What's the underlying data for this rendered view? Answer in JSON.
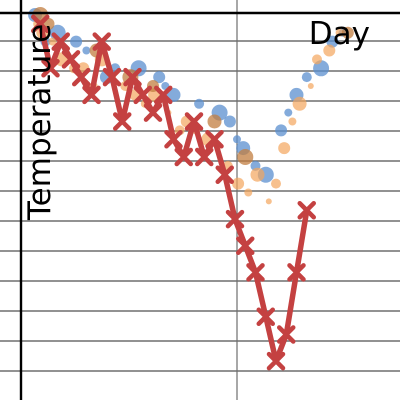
{
  "chart_data": {
    "type": "scatter",
    "xlabel": "Day",
    "ylabel": "Temperature",
    "grid": "on",
    "colors": {
      "line": "#c44141",
      "blue_points": "#5b8fcf",
      "orange_points": "#f4a55c",
      "brown_points": "#c27e40"
    },
    "series": [
      {
        "values": [
          [
            1,
            39
          ],
          [
            2,
            34
          ],
          [
            3,
            37
          ],
          [
            4,
            35
          ],
          [
            5,
            33
          ],
          [
            6,
            31
          ],
          [
            7,
            37
          ],
          [
            8,
            33
          ],
          [
            9,
            28
          ],
          [
            10,
            33
          ],
          [
            11,
            31
          ],
          [
            12,
            29
          ],
          [
            13,
            31
          ],
          [
            14,
            26
          ],
          [
            15,
            24
          ],
          [
            16,
            28
          ],
          [
            17,
            24
          ],
          [
            18,
            26
          ],
          [
            19,
            22
          ],
          [
            20,
            17
          ],
          [
            21,
            14
          ],
          [
            22,
            11
          ],
          [
            23,
            6
          ],
          [
            24,
            1
          ],
          [
            25,
            4
          ],
          [
            26,
            11
          ],
          [
            27,
            18
          ]
        ]
      },
      {
        "values": [
          [
            0.5,
            40
          ],
          [
            1.5,
            37
          ],
          [
            2.7,
            38
          ],
          [
            4.5,
            37
          ],
          [
            5.5,
            36
          ],
          [
            7.5,
            33
          ],
          [
            8.3,
            34
          ],
          [
            10.6,
            34
          ],
          [
            12.6,
            33
          ],
          [
            13.2,
            32
          ],
          [
            14.0,
            31
          ],
          [
            16.5,
            30
          ],
          [
            18.5,
            29
          ],
          [
            19.5,
            28
          ],
          [
            20.2,
            26
          ],
          [
            20.8,
            25
          ],
          [
            22.0,
            23
          ],
          [
            23.0,
            22
          ],
          [
            24.5,
            27
          ],
          [
            25.2,
            29
          ],
          [
            26.0,
            31
          ],
          [
            27.0,
            33
          ],
          [
            28.4,
            34
          ],
          [
            29.5,
            37
          ],
          [
            30.5,
            38
          ]
        ]
      },
      {
        "values": [
          [
            0.8,
            39
          ],
          [
            1.2,
            38
          ],
          [
            2.2,
            37
          ],
          [
            3.1,
            35
          ],
          [
            3.5,
            36
          ],
          [
            4.3,
            34
          ],
          [
            5.2,
            34
          ],
          [
            6.2,
            32
          ],
          [
            7.0,
            35
          ],
          [
            8.1,
            33
          ],
          [
            9.3,
            32
          ],
          [
            10.3,
            31
          ],
          [
            11.2,
            30
          ],
          [
            12.2,
            31
          ],
          [
            13.5,
            29
          ],
          [
            14.6,
            27
          ],
          [
            15.3,
            28
          ],
          [
            16.2,
            27
          ],
          [
            17.4,
            26
          ],
          [
            18.3,
            25
          ],
          [
            19.3,
            23
          ],
          [
            20.3,
            21
          ],
          [
            21.3,
            20
          ],
          [
            22.2,
            22
          ],
          [
            23.3,
            19
          ],
          [
            24.0,
            21
          ],
          [
            24.8,
            25
          ],
          [
            25.6,
            28
          ],
          [
            26.3,
            30
          ],
          [
            27.4,
            32
          ],
          [
            28.0,
            35
          ],
          [
            29.2,
            36
          ],
          [
            30.2,
            38
          ]
        ]
      },
      {
        "values": [
          [
            1.0,
            40
          ],
          [
            1.8,
            39
          ],
          [
            6.5,
            36
          ],
          [
            9.8,
            33
          ],
          [
            12.0,
            32
          ],
          [
            18.0,
            28
          ],
          [
            21.0,
            24
          ],
          [
            31.0,
            38
          ]
        ]
      }
    ]
  }
}
